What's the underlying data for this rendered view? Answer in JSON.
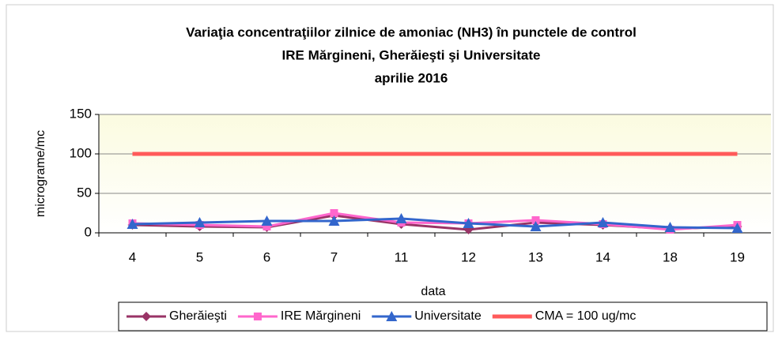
{
  "chart_data": {
    "type": "line",
    "title": [
      "Variaţia concentraţiilor zilnice de amoniac (NH3) în punctele de control",
      "IRE Mărgineni, Gherăieşti şi Universitate",
      "aprilie 2016"
    ],
    "x_label": "data",
    "y_label": "micrograme/mc",
    "categories": [
      "4",
      "5",
      "6",
      "7",
      "11",
      "12",
      "13",
      "14",
      "18",
      "19"
    ],
    "series": [
      {
        "name": "Gherăieşti",
        "color": "#993366",
        "marker": "diamond",
        "values": [
          10,
          8,
          7,
          22,
          11,
          4,
          13,
          10,
          5,
          8
        ]
      },
      {
        "name": "IRE Mărgineni",
        "color": "#ff66cc",
        "marker": "square",
        "values": [
          12,
          10,
          8,
          25,
          13,
          12,
          16,
          11,
          4,
          10
        ]
      },
      {
        "name": "Universitate",
        "color": "#3366cc",
        "marker": "triangle",
        "values": [
          11,
          13,
          15,
          15,
          18,
          12,
          8,
          13,
          7,
          6
        ]
      },
      {
        "name": "CMA = 100 ug/mc",
        "color": "#ff5a5a",
        "marker": "none",
        "values": [
          100,
          100,
          100,
          100,
          100,
          100,
          100,
          100,
          100,
          100
        ]
      }
    ],
    "ylim": [
      0,
      150
    ],
    "yticks": [
      0,
      50,
      100,
      150
    ],
    "grid": true,
    "legend": "bottom"
  }
}
